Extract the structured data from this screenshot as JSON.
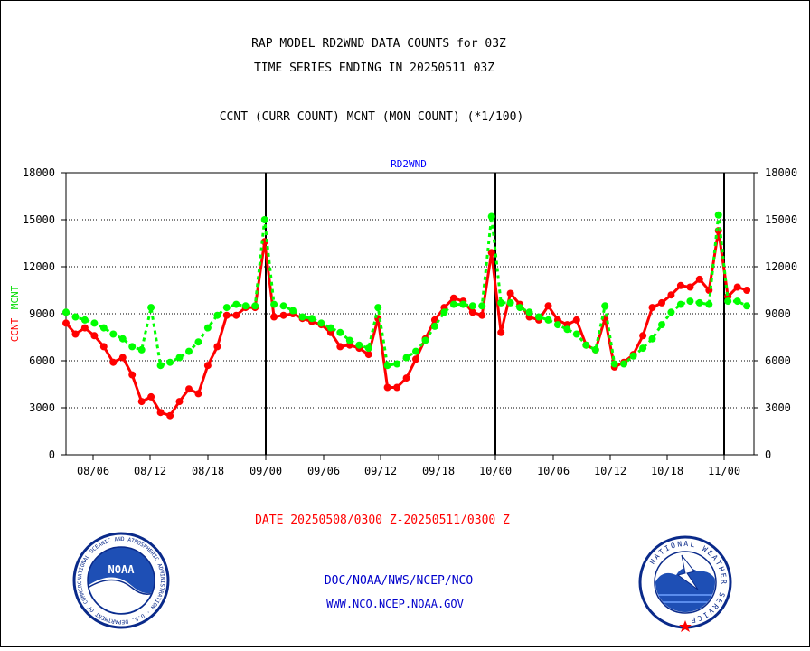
{
  "header": {
    "line1": "RAP MODEL RD2WND DATA COUNTS for 03Z",
    "line2": "TIME SERIES ENDING IN 20250511 03Z",
    "line3": "CCNT (CURR COUNT) MCNT (MON COUNT) (*1/100)"
  },
  "footer": {
    "date_range": "DATE 20250508/0300 Z-20250511/0300 Z",
    "org": "DOC/NOAA/NWS/NCEP/NCO",
    "url": "WWW.NCO.NCEP.NOAA.GOV"
  },
  "logos": {
    "left": {
      "label": "NOAA",
      "ring_text": "NATIONAL OCEANIC AND ATMOSPHERIC ADMINISTRATION · U.S. DEPARTMENT OF COMMERCE"
    },
    "right": {
      "ring_text": "NATIONAL WEATHER SERVICE"
    }
  },
  "colors": {
    "ccnt": "#ff0000",
    "mcnt": "#00ff00",
    "title": "#0000ff",
    "date": "#ff0000",
    "org_text": "#0000cc"
  },
  "chart_data": {
    "type": "line",
    "title": "RD2WND",
    "ylabel_series": [
      "CCNT",
      "MCNT"
    ],
    "ylim": [
      0,
      18000
    ],
    "y_ticks": [
      0,
      3000,
      6000,
      9000,
      12000,
      15000,
      18000
    ],
    "x_ticks": [
      "08/06",
      "08/12",
      "08/18",
      "09/00",
      "09/06",
      "09/12",
      "09/18",
      "10/00",
      "10/06",
      "10/12",
      "10/18",
      "11/00"
    ],
    "day_separators": [
      "09/00",
      "10/00",
      "11/00"
    ],
    "grid": "horizontal-dotted",
    "hour_step": 1,
    "x_start": "08/03",
    "series": [
      {
        "name": "CCNT",
        "style": "solid",
        "values": [
          8400,
          7700,
          8100,
          7600,
          6900,
          5900,
          6200,
          5100,
          3400,
          3700,
          2700,
          2500,
          3400,
          4200,
          3900,
          5700,
          6900,
          8900,
          8900,
          9400,
          9400,
          13600,
          8800,
          8900,
          9000,
          8700,
          8500,
          8300,
          7800,
          6900,
          7000,
          6800,
          6400,
          8700,
          4300,
          4300,
          4900,
          6100,
          7400,
          8600,
          9400,
          10000,
          9800,
          9100,
          8900,
          12900,
          7800,
          10300,
          9600,
          8800,
          8600,
          9500,
          8600,
          8300,
          8600,
          7000,
          6700,
          8700,
          5600,
          5900,
          6400,
          7600,
          9400,
          9700,
          10200,
          10800,
          10700,
          11200,
          10500,
          14300,
          10100,
          10700,
          10500
        ]
      },
      {
        "name": "MCNT",
        "style": "dotted",
        "values": [
          9100,
          8800,
          8600,
          8400,
          8100,
          7700,
          7400,
          6900,
          6700,
          9400,
          5700,
          5900,
          6200,
          6600,
          7200,
          8100,
          8900,
          9400,
          9600,
          9500,
          9500,
          15000,
          9600,
          9500,
          9200,
          8800,
          8700,
          8400,
          8100,
          7800,
          7300,
          7000,
          6800,
          9400,
          5700,
          5800,
          6200,
          6600,
          7300,
          8200,
          9100,
          9600,
          9600,
          9500,
          9500,
          15200,
          9700,
          9700,
          9400,
          9100,
          8800,
          8600,
          8300,
          8000,
          7700,
          7000,
          6700,
          9500,
          5800,
          5800,
          6300,
          6800,
          7400,
          8300,
          9100,
          9600,
          9800,
          9700,
          9600,
          15300,
          9800,
          9800,
          9500
        ]
      }
    ]
  }
}
